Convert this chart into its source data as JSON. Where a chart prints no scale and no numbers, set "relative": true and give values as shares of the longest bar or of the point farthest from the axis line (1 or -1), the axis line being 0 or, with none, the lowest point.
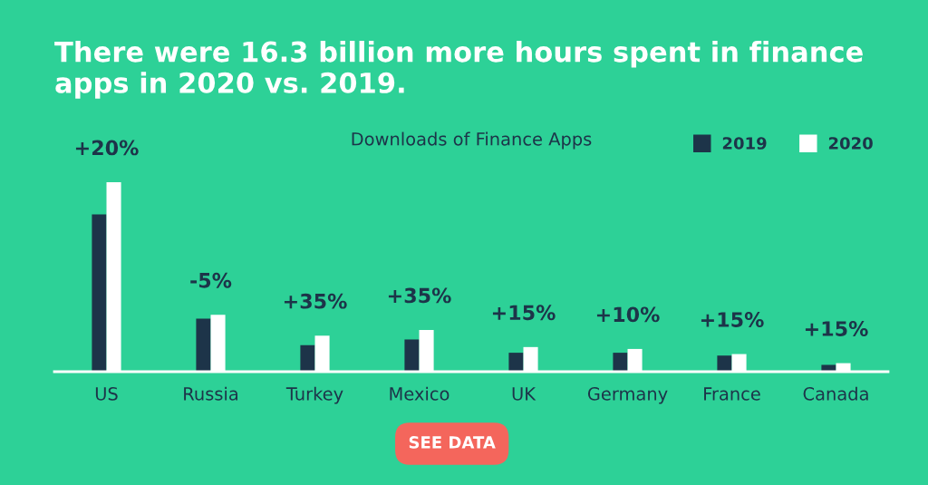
{
  "chart_data": {
    "type": "bar",
    "title": "There were 16.3 billion more hours spent in finance apps in 2020 vs. 2019.",
    "subtitle": "Downloads of Finance Apps",
    "categories": [
      "US",
      "Russia",
      "Turkey",
      "Mexico",
      "UK",
      "Germany",
      "France",
      "Canada"
    ],
    "relative": true,
    "series": [
      {
        "name": "2019",
        "color": "#1d3449",
        "values": [
          0.83,
          0.28,
          0.14,
          0.17,
          0.1,
          0.1,
          0.085,
          0.036
        ]
      },
      {
        "name": "2020",
        "color": "#ffffff",
        "values": [
          1.0,
          0.3,
          0.19,
          0.22,
          0.13,
          0.12,
          0.093,
          0.045
        ]
      }
    ],
    "annotations": [
      "+20%",
      "-5%",
      "+35%",
      "+35%",
      "+15%",
      "+10%",
      "+15%",
      "+15%",
      "SEE DATA"
    ],
    "legend": "top right",
    "grid": false
  }
}
